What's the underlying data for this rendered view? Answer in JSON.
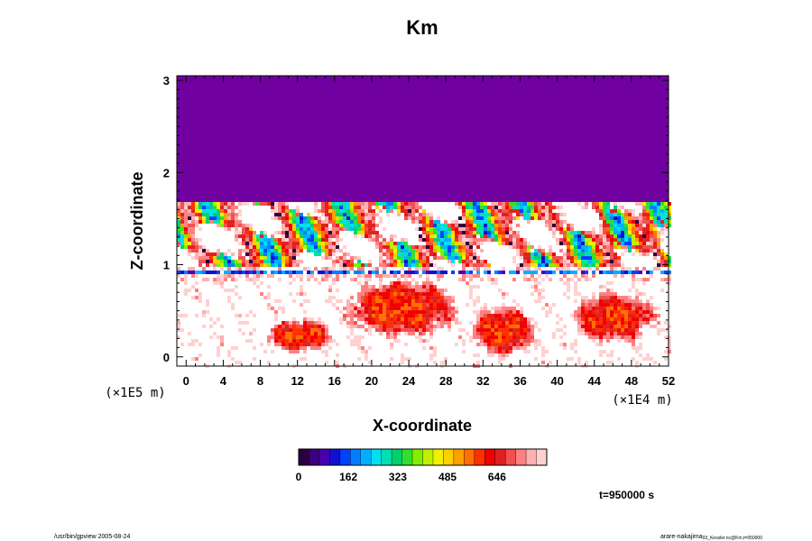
{
  "chart_data": {
    "type": "heatmap",
    "title": "Km",
    "xlabel": "X-coordinate",
    "ylabel": "Z-coordinate",
    "x_units": "(×1E4 m)",
    "y_units": "(×1E5 m)",
    "xlim": [
      -1,
      52
    ],
    "ylim": [
      -0.1,
      3.05
    ],
    "x_ticks": [
      "0",
      "4",
      "8",
      "12",
      "16",
      "20",
      "24",
      "28",
      "32",
      "36",
      "40",
      "44",
      "48",
      "52"
    ],
    "y_ticks": [
      "0",
      "1",
      "2",
      "3"
    ],
    "colorbar": {
      "min": 0,
      "max": 808,
      "tick_labels": [
        "0",
        "162",
        "323",
        "485",
        "646"
      ],
      "colors": [
        "#2a0040",
        "#3a0080",
        "#4a00b0",
        "#1010d0",
        "#0040ff",
        "#0080ff",
        "#00b0ff",
        "#00e0f0",
        "#00e0b0",
        "#00d070",
        "#30e030",
        "#80f000",
        "#c0f000",
        "#f0f000",
        "#ffd000",
        "#ffa000",
        "#ff7000",
        "#ff3000",
        "#f00000",
        "#e02020",
        "#f05050",
        "#ff8080",
        "#ffb0b0",
        "#ffd0d0"
      ]
    },
    "time_label": "t=950000 s",
    "background_color": "#7000a0"
  },
  "footer": {
    "left": "/usr/bin/gpview 2005-08-24",
    "right_main": "arare-nakajima",
    "right_sub": "03_Kessler.nc@Km,t=950000"
  }
}
